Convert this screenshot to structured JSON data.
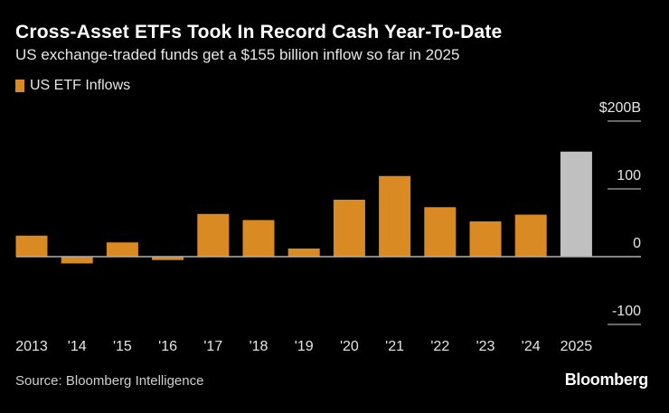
{
  "chart_data": {
    "type": "bar",
    "title": "Cross-Asset ETFs Took In Record Cash Year-To-Date",
    "subtitle": "US exchange-traded funds get a $155 billion inflow so far in 2025",
    "categories": [
      "2013",
      "'14",
      "'15",
      "'16",
      "'17",
      "'18",
      "'19",
      "'20",
      "'21",
      "'22",
      "'23",
      "'24",
      "2025"
    ],
    "series": [
      {
        "name": "US ETF Inflows",
        "values": [
          31,
          -10,
          21,
          -5,
          63,
          54,
          12,
          84,
          119,
          73,
          52,
          62,
          155
        ]
      }
    ],
    "highlight_color": "#c0c0c0",
    "highlight_category": "2025",
    "ylim": [
      -100,
      200
    ],
    "yticks": [
      {
        "value": 200,
        "label": "$200B"
      },
      {
        "value": 100,
        "label": "100"
      },
      {
        "value": 0,
        "label": "0"
      },
      {
        "value": -100,
        "label": "-100"
      }
    ],
    "y_axis_position": "right",
    "legend_position": "top-left",
    "grid": true,
    "xlabel": "",
    "ylabel": ""
  },
  "colors": {
    "bar": "#d98a22",
    "background": "#000000",
    "grid": "#8a8a8a",
    "zero_line": "#b0b0b0"
  },
  "source": "Source: Bloomberg Intelligence",
  "logo": "Bloomberg"
}
